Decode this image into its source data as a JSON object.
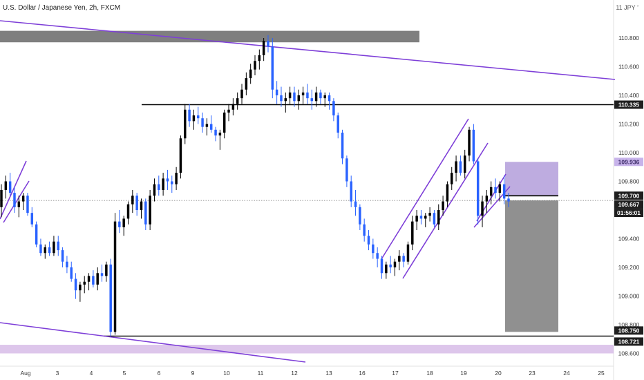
{
  "header": {
    "title": "U.S. Dollar / Japanese Yen, 2h, FXCM",
    "corner_label": "11 JPY ’"
  },
  "colors": {
    "up": "#000000",
    "down": "#2962ff",
    "trend": "#7e3fd8",
    "target_zone": "#b39ddb",
    "stop_zone": "#8a8a8a",
    "resistance_zone": "#7f7f7f",
    "support_zone": "#d5b8e6",
    "price_badge": "#1f1f1f",
    "target_badge": "#c7b3ea"
  },
  "chart_data": {
    "type": "candlestick",
    "title": "U.S. Dollar / Japanese Yen, 2h, FXCM",
    "ylim": [
      108.52,
      111.05
    ],
    "y_ticks": [
      "110.800",
      "110.600",
      "110.400",
      "110.200",
      "110.000",
      "109.800",
      "109.400",
      "109.200",
      "109.000",
      "108.800",
      "108.600"
    ],
    "x_ticks": [
      "Aug",
      "3",
      "4",
      "5",
      "6",
      "9",
      "10",
      "11",
      "12",
      "13",
      "16",
      "17",
      "18",
      "19",
      "20",
      "23",
      "24",
      "25"
    ],
    "price_labels": {
      "resistance": "110.335",
      "target": "109.936",
      "entry": "109.700",
      "current": "109.667",
      "countdown": "01:56:01",
      "stop": "108.750",
      "low": "108.721"
    },
    "levels": {
      "resistance": 110.335,
      "target": 109.936,
      "entry": 109.7,
      "current": 109.667,
      "stop": 108.75,
      "low": 108.721
    },
    "grid": false,
    "candles": [
      [
        109.62,
        109.78,
        109.55,
        109.74
      ],
      [
        109.74,
        109.84,
        109.68,
        109.8
      ],
      [
        109.8,
        109.86,
        109.7,
        109.72
      ],
      [
        109.72,
        109.76,
        109.58,
        109.62
      ],
      [
        109.62,
        109.7,
        109.55,
        109.66
      ],
      [
        109.66,
        109.72,
        109.6,
        109.7
      ],
      [
        109.7,
        109.72,
        109.56,
        109.58
      ],
      [
        109.58,
        109.62,
        109.48,
        109.5
      ],
      [
        109.5,
        109.52,
        109.34,
        109.36
      ],
      [
        109.36,
        109.4,
        109.28,
        109.3
      ],
      [
        109.3,
        109.36,
        109.26,
        109.34
      ],
      [
        109.34,
        109.38,
        109.28,
        109.3
      ],
      [
        109.3,
        109.42,
        109.28,
        109.38
      ],
      [
        109.38,
        109.42,
        109.28,
        109.32
      ],
      [
        109.32,
        109.34,
        109.2,
        109.24
      ],
      [
        109.24,
        109.28,
        109.16,
        109.2
      ],
      [
        109.2,
        109.24,
        109.1,
        109.12
      ],
      [
        109.12,
        109.16,
        108.98,
        109.04
      ],
      [
        109.04,
        109.1,
        108.96,
        109.08
      ],
      [
        109.08,
        109.14,
        109.02,
        109.1
      ],
      [
        109.1,
        109.16,
        109.04,
        109.14
      ],
      [
        109.14,
        109.18,
        109.06,
        109.08
      ],
      [
        109.08,
        109.2,
        109.04,
        109.16
      ],
      [
        109.16,
        109.22,
        109.1,
        109.14
      ],
      [
        109.14,
        109.24,
        109.1,
        109.22
      ],
      [
        109.22,
        109.26,
        108.72,
        108.75
      ],
      [
        108.75,
        109.58,
        108.73,
        109.52
      ],
      [
        109.52,
        109.6,
        109.44,
        109.48
      ],
      [
        109.48,
        109.56,
        109.42,
        109.54
      ],
      [
        109.54,
        109.66,
        109.5,
        109.64
      ],
      [
        109.64,
        109.74,
        109.58,
        109.7
      ],
      [
        109.7,
        109.72,
        109.56,
        109.6
      ],
      [
        109.6,
        109.68,
        109.54,
        109.66
      ],
      [
        109.66,
        109.68,
        109.46,
        109.5
      ],
      [
        109.5,
        109.74,
        109.46,
        109.7
      ],
      [
        109.7,
        109.82,
        109.66,
        109.78
      ],
      [
        109.78,
        109.84,
        109.7,
        109.74
      ],
      [
        109.74,
        109.86,
        109.7,
        109.82
      ],
      [
        109.82,
        109.88,
        109.74,
        109.8
      ],
      [
        109.8,
        109.84,
        109.72,
        109.78
      ],
      [
        109.78,
        109.9,
        109.74,
        109.86
      ],
      [
        109.86,
        110.12,
        109.82,
        110.1
      ],
      [
        110.1,
        110.34,
        110.06,
        110.3
      ],
      [
        110.3,
        110.34,
        110.18,
        110.22
      ],
      [
        110.22,
        110.3,
        110.16,
        110.26
      ],
      [
        110.26,
        110.32,
        110.2,
        110.24
      ],
      [
        110.24,
        110.28,
        110.14,
        110.18
      ],
      [
        110.18,
        110.24,
        110.12,
        110.2
      ],
      [
        110.2,
        110.26,
        110.14,
        110.16
      ],
      [
        110.16,
        110.18,
        110.08,
        110.12
      ],
      [
        110.12,
        110.16,
        110.02,
        110.14
      ],
      [
        110.14,
        110.3,
        110.1,
        110.28
      ],
      [
        110.28,
        110.34,
        110.22,
        110.3
      ],
      [
        110.3,
        110.38,
        110.26,
        110.34
      ],
      [
        110.34,
        110.42,
        110.3,
        110.38
      ],
      [
        110.38,
        110.48,
        110.34,
        110.44
      ],
      [
        110.44,
        110.56,
        110.4,
        110.52
      ],
      [
        110.52,
        110.62,
        110.48,
        110.58
      ],
      [
        110.58,
        110.68,
        110.54,
        110.64
      ],
      [
        110.64,
        110.72,
        110.58,
        110.68
      ],
      [
        110.68,
        110.8,
        110.64,
        110.78
      ],
      [
        110.78,
        110.82,
        110.7,
        110.74
      ],
      [
        110.74,
        110.8,
        110.38,
        110.44
      ],
      [
        110.44,
        110.5,
        110.34,
        110.4
      ],
      [
        110.4,
        110.46,
        110.32,
        110.36
      ],
      [
        110.36,
        110.42,
        110.28,
        110.38
      ],
      [
        110.38,
        110.46,
        110.34,
        110.42
      ],
      [
        110.42,
        110.46,
        110.32,
        110.36
      ],
      [
        110.36,
        110.44,
        110.3,
        110.4
      ],
      [
        110.4,
        110.46,
        110.34,
        110.42
      ],
      [
        110.42,
        110.48,
        110.34,
        110.38
      ],
      [
        110.38,
        110.44,
        110.3,
        110.36
      ],
      [
        110.36,
        110.46,
        110.32,
        110.42
      ],
      [
        110.42,
        110.44,
        110.34,
        110.38
      ],
      [
        110.38,
        110.42,
        110.32,
        110.4
      ],
      [
        110.4,
        110.42,
        110.3,
        110.36
      ],
      [
        110.36,
        110.38,
        110.22,
        110.26
      ],
      [
        110.26,
        110.28,
        110.1,
        110.14
      ],
      [
        110.14,
        110.16,
        109.92,
        109.96
      ],
      [
        109.96,
        109.98,
        109.76,
        109.8
      ],
      [
        109.8,
        109.84,
        109.62,
        109.66
      ],
      [
        109.66,
        109.74,
        109.56,
        109.62
      ],
      [
        109.62,
        109.64,
        109.46,
        109.5
      ],
      [
        109.5,
        109.54,
        109.38,
        109.42
      ],
      [
        109.42,
        109.46,
        109.32,
        109.36
      ],
      [
        109.36,
        109.4,
        109.26,
        109.3
      ],
      [
        109.3,
        109.34,
        109.2,
        109.26
      ],
      [
        109.26,
        109.28,
        109.12,
        109.16
      ],
      [
        109.16,
        109.24,
        109.12,
        109.22
      ],
      [
        109.22,
        109.28,
        109.16,
        109.2
      ],
      [
        109.2,
        109.26,
        109.14,
        109.24
      ],
      [
        109.24,
        109.32,
        109.18,
        109.28
      ],
      [
        109.28,
        109.3,
        109.2,
        109.24
      ],
      [
        109.24,
        109.38,
        109.22,
        109.36
      ],
      [
        109.36,
        109.56,
        109.32,
        109.52
      ],
      [
        109.52,
        109.6,
        109.46,
        109.56
      ],
      [
        109.56,
        109.6,
        109.5,
        109.54
      ],
      [
        109.54,
        109.58,
        109.48,
        109.56
      ],
      [
        109.56,
        109.62,
        109.52,
        109.58
      ],
      [
        109.58,
        109.6,
        109.48,
        109.5
      ],
      [
        109.5,
        109.64,
        109.46,
        109.6
      ],
      [
        109.6,
        109.7,
        109.56,
        109.66
      ],
      [
        109.66,
        109.8,
        109.62,
        109.78
      ],
      [
        109.78,
        109.9,
        109.74,
        109.86
      ],
      [
        109.86,
        109.98,
        109.8,
        109.94
      ],
      [
        109.94,
        109.98,
        109.84,
        109.86
      ],
      [
        109.86,
        110.02,
        109.82,
        109.98
      ],
      [
        109.98,
        110.18,
        109.94,
        110.16
      ],
      [
        110.16,
        110.2,
        109.92,
        109.94
      ],
      [
        109.94,
        109.96,
        109.5,
        109.56
      ],
      [
        109.56,
        109.7,
        109.48,
        109.66
      ],
      [
        109.66,
        109.74,
        109.58,
        109.7
      ],
      [
        109.7,
        109.8,
        109.64,
        109.76
      ],
      [
        109.76,
        109.82,
        109.68,
        109.72
      ],
      [
        109.72,
        109.8,
        109.66,
        109.78
      ],
      [
        109.78,
        109.84,
        109.64,
        109.68
      ],
      [
        109.68,
        109.72,
        109.62,
        109.66
      ]
    ],
    "annotations": {
      "resistance_zone": [
        110.77,
        110.85
      ],
      "support_zone": [
        108.6,
        108.66
      ]
    }
  }
}
